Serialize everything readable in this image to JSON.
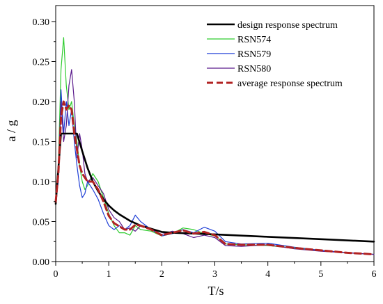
{
  "chart_data": {
    "type": "line",
    "xlabel": "T/s",
    "ylabel": "a / g",
    "xlim": [
      0,
      6
    ],
    "ylim": [
      0,
      0.32
    ],
    "x_ticks": [
      "0",
      "1",
      "2",
      "3",
      "4",
      "5",
      "6"
    ],
    "y_ticks": [
      "0.00",
      "0.05",
      "0.10",
      "0.15",
      "0.20",
      "0.25",
      "0.30"
    ],
    "x_minor_ticks": [
      0.5,
      1.5,
      2.5,
      3.5,
      4.5,
      5.5
    ],
    "y_minor_ticks": [
      0.025,
      0.075,
      0.125,
      0.175,
      0.225,
      0.275
    ],
    "grid": false,
    "legend_position": "top-right",
    "series": [
      {
        "name": "design response spectrum",
        "color": "#000000",
        "style": "solid-thick",
        "points": [
          [
            0,
            0.072
          ],
          [
            0.1,
            0.16
          ],
          [
            0.4,
            0.16
          ],
          [
            0.5,
            0.138
          ],
          [
            0.6,
            0.117
          ],
          [
            0.7,
            0.1
          ],
          [
            0.8,
            0.088
          ],
          [
            0.9,
            0.078
          ],
          [
            1.0,
            0.07
          ],
          [
            1.1,
            0.064
          ],
          [
            1.2,
            0.059
          ],
          [
            1.4,
            0.051
          ],
          [
            1.6,
            0.045
          ],
          [
            1.8,
            0.041
          ],
          [
            2.0,
            0.037
          ],
          [
            2.2,
            0.036
          ],
          [
            3.0,
            0.034
          ],
          [
            4.0,
            0.031
          ],
          [
            5.0,
            0.028
          ],
          [
            6.0,
            0.025
          ]
        ]
      },
      {
        "name": "RSN574",
        "color": "#2ecc2e",
        "style": "solid",
        "points": [
          [
            0,
            0.075
          ],
          [
            0.05,
            0.12
          ],
          [
            0.1,
            0.24
          ],
          [
            0.15,
            0.28
          ],
          [
            0.2,
            0.22
          ],
          [
            0.25,
            0.19
          ],
          [
            0.3,
            0.2
          ],
          [
            0.35,
            0.17
          ],
          [
            0.4,
            0.15
          ],
          [
            0.45,
            0.12
          ],
          [
            0.5,
            0.1
          ],
          [
            0.55,
            0.09
          ],
          [
            0.6,
            0.095
          ],
          [
            0.7,
            0.11
          ],
          [
            0.8,
            0.1
          ],
          [
            0.9,
            0.08
          ],
          [
            1.0,
            0.06
          ],
          [
            1.1,
            0.045
          ],
          [
            1.2,
            0.036
          ],
          [
            1.3,
            0.036
          ],
          [
            1.4,
            0.033
          ],
          [
            1.5,
            0.045
          ],
          [
            1.6,
            0.04
          ],
          [
            1.8,
            0.038
          ],
          [
            2.0,
            0.032
          ],
          [
            2.2,
            0.035
          ],
          [
            2.4,
            0.042
          ],
          [
            2.6,
            0.04
          ],
          [
            2.8,
            0.035
          ],
          [
            3.0,
            0.032
          ],
          [
            3.2,
            0.022
          ],
          [
            3.5,
            0.021
          ],
          [
            4.0,
            0.02
          ],
          [
            4.5,
            0.017
          ],
          [
            5.0,
            0.014
          ],
          [
            5.5,
            0.011
          ],
          [
            6.0,
            0.009
          ]
        ]
      },
      {
        "name": "RSN579",
        "color": "#1f3fd6",
        "style": "solid",
        "points": [
          [
            0,
            0.075
          ],
          [
            0.05,
            0.1
          ],
          [
            0.1,
            0.215
          ],
          [
            0.15,
            0.16
          ],
          [
            0.2,
            0.2
          ],
          [
            0.25,
            0.17
          ],
          [
            0.3,
            0.19
          ],
          [
            0.35,
            0.15
          ],
          [
            0.4,
            0.12
          ],
          [
            0.45,
            0.095
          ],
          [
            0.5,
            0.08
          ],
          [
            0.55,
            0.085
          ],
          [
            0.6,
            0.1
          ],
          [
            0.7,
            0.09
          ],
          [
            0.8,
            0.078
          ],
          [
            0.9,
            0.06
          ],
          [
            1.0,
            0.045
          ],
          [
            1.1,
            0.04
          ],
          [
            1.2,
            0.045
          ],
          [
            1.3,
            0.04
          ],
          [
            1.4,
            0.045
          ],
          [
            1.5,
            0.058
          ],
          [
            1.6,
            0.05
          ],
          [
            1.8,
            0.04
          ],
          [
            2.0,
            0.032
          ],
          [
            2.2,
            0.035
          ],
          [
            2.4,
            0.04
          ],
          [
            2.6,
            0.036
          ],
          [
            2.8,
            0.043
          ],
          [
            3.0,
            0.038
          ],
          [
            3.2,
            0.025
          ],
          [
            3.5,
            0.022
          ],
          [
            4.0,
            0.023
          ],
          [
            4.5,
            0.018
          ],
          [
            5.0,
            0.014
          ],
          [
            5.5,
            0.011
          ],
          [
            6.0,
            0.009
          ]
        ]
      },
      {
        "name": "RSN580",
        "color": "#5a1a8c",
        "style": "solid",
        "points": [
          [
            0,
            0.075
          ],
          [
            0.05,
            0.11
          ],
          [
            0.1,
            0.2
          ],
          [
            0.15,
            0.15
          ],
          [
            0.2,
            0.17
          ],
          [
            0.25,
            0.22
          ],
          [
            0.3,
            0.24
          ],
          [
            0.35,
            0.2
          ],
          [
            0.4,
            0.13
          ],
          [
            0.45,
            0.16
          ],
          [
            0.5,
            0.14
          ],
          [
            0.55,
            0.11
          ],
          [
            0.6,
            0.1
          ],
          [
            0.7,
            0.105
          ],
          [
            0.8,
            0.095
          ],
          [
            0.9,
            0.085
          ],
          [
            1.0,
            0.065
          ],
          [
            1.1,
            0.055
          ],
          [
            1.2,
            0.05
          ],
          [
            1.3,
            0.04
          ],
          [
            1.4,
            0.042
          ],
          [
            1.5,
            0.038
          ],
          [
            1.6,
            0.045
          ],
          [
            1.8,
            0.04
          ],
          [
            2.0,
            0.034
          ],
          [
            2.2,
            0.038
          ],
          [
            2.4,
            0.035
          ],
          [
            2.6,
            0.03
          ],
          [
            2.8,
            0.033
          ],
          [
            3.0,
            0.03
          ],
          [
            3.2,
            0.02
          ],
          [
            3.5,
            0.019
          ],
          [
            4.0,
            0.021
          ],
          [
            4.5,
            0.016
          ],
          [
            5.0,
            0.013
          ],
          [
            5.5,
            0.011
          ],
          [
            6.0,
            0.009
          ]
        ]
      },
      {
        "name": "average response spectrum",
        "color": "#b22222",
        "style": "dashed-thick",
        "points": [
          [
            0,
            0.075
          ],
          [
            0.05,
            0.11
          ],
          [
            0.1,
            0.18
          ],
          [
            0.15,
            0.2
          ],
          [
            0.2,
            0.19
          ],
          [
            0.25,
            0.195
          ],
          [
            0.3,
            0.19
          ],
          [
            0.35,
            0.16
          ],
          [
            0.4,
            0.14
          ],
          [
            0.45,
            0.12
          ],
          [
            0.5,
            0.11
          ],
          [
            0.6,
            0.1
          ],
          [
            0.7,
            0.1
          ],
          [
            0.8,
            0.09
          ],
          [
            0.9,
            0.075
          ],
          [
            1.0,
            0.057
          ],
          [
            1.1,
            0.048
          ],
          [
            1.2,
            0.044
          ],
          [
            1.3,
            0.04
          ],
          [
            1.4,
            0.04
          ],
          [
            1.5,
            0.046
          ],
          [
            1.6,
            0.045
          ],
          [
            1.8,
            0.04
          ],
          [
            2.0,
            0.033
          ],
          [
            2.2,
            0.036
          ],
          [
            2.4,
            0.039
          ],
          [
            2.6,
            0.035
          ],
          [
            2.8,
            0.037
          ],
          [
            3.0,
            0.033
          ],
          [
            3.2,
            0.022
          ],
          [
            3.5,
            0.021
          ],
          [
            4.0,
            0.021
          ],
          [
            4.5,
            0.017
          ],
          [
            5.0,
            0.014
          ],
          [
            5.5,
            0.011
          ],
          [
            6.0,
            0.009
          ]
        ]
      }
    ]
  }
}
